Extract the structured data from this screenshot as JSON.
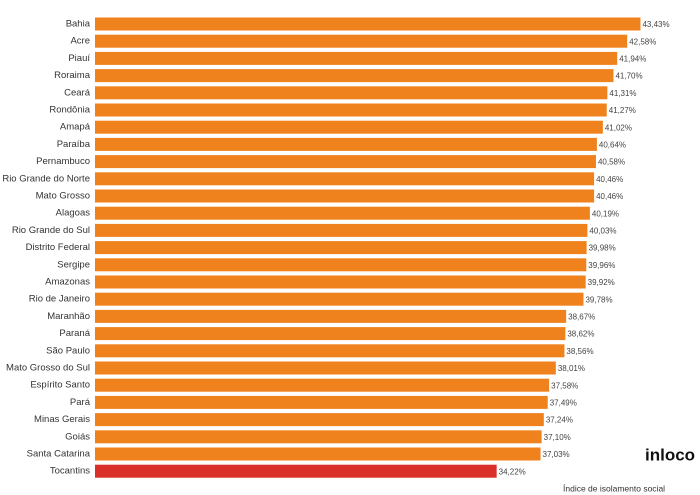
{
  "chart_data": {
    "type": "hbar",
    "x_label": "Índice de isolamento social",
    "logo": "inloco",
    "categories": [
      "Bahia",
      "Acre",
      "Piauí",
      "Roraima",
      "Ceará",
      "Rondônia",
      "Amapá",
      "Paraíba",
      "Pernambuco",
      "Rio Grande do Norte",
      "Mato Grosso",
      "Alagoas",
      "Rio Grande do Sul",
      "Distrito Federal",
      "Sergipe",
      "Amazonas",
      "Rio de Janeiro",
      "Maranhão",
      "Paraná",
      "São Paulo",
      "Mato Grosso do Sul",
      "Espírito Santo",
      "Pará",
      "Minas Gerais",
      "Goiás",
      "Santa Catarina",
      "Tocantins"
    ],
    "values": [
      43.43,
      42.58,
      41.94,
      41.7,
      41.31,
      41.27,
      41.02,
      40.64,
      40.58,
      40.46,
      40.46,
      40.19,
      40.03,
      39.98,
      39.96,
      39.92,
      39.78,
      38.67,
      38.62,
      38.56,
      38.01,
      37.58,
      37.49,
      37.24,
      37.1,
      37.03,
      34.22
    ],
    "value_labels": [
      "43,43%",
      "42,58%",
      "41,94%",
      "41,70%",
      "41,31%",
      "41,27%",
      "41,02%",
      "40,64%",
      "40,58%",
      "40,46%",
      "40,46%",
      "40,19%",
      "40,03%",
      "39,98%",
      "39,96%",
      "39,92%",
      "39,78%",
      "38,67%",
      "38,62%",
      "38,56%",
      "38,01%",
      "37,58%",
      "37,49%",
      "37,24%",
      "37,10%",
      "37,03%",
      "34,22%"
    ],
    "colors": [
      "#f0821e",
      "#f0821e",
      "#f0821e",
      "#f0821e",
      "#f0821e",
      "#f0821e",
      "#f0821e",
      "#f0821e",
      "#f0821e",
      "#f0821e",
      "#f0821e",
      "#f0821e",
      "#f0821e",
      "#f0821e",
      "#f0821e",
      "#f0821e",
      "#f0821e",
      "#f0821e",
      "#f0821e",
      "#f0821e",
      "#f0821e",
      "#f0821e",
      "#f0821e",
      "#f0821e",
      "#f0821e",
      "#f0821e",
      "#d9302a"
    ],
    "xlim": [
      8.5,
      45
    ]
  }
}
